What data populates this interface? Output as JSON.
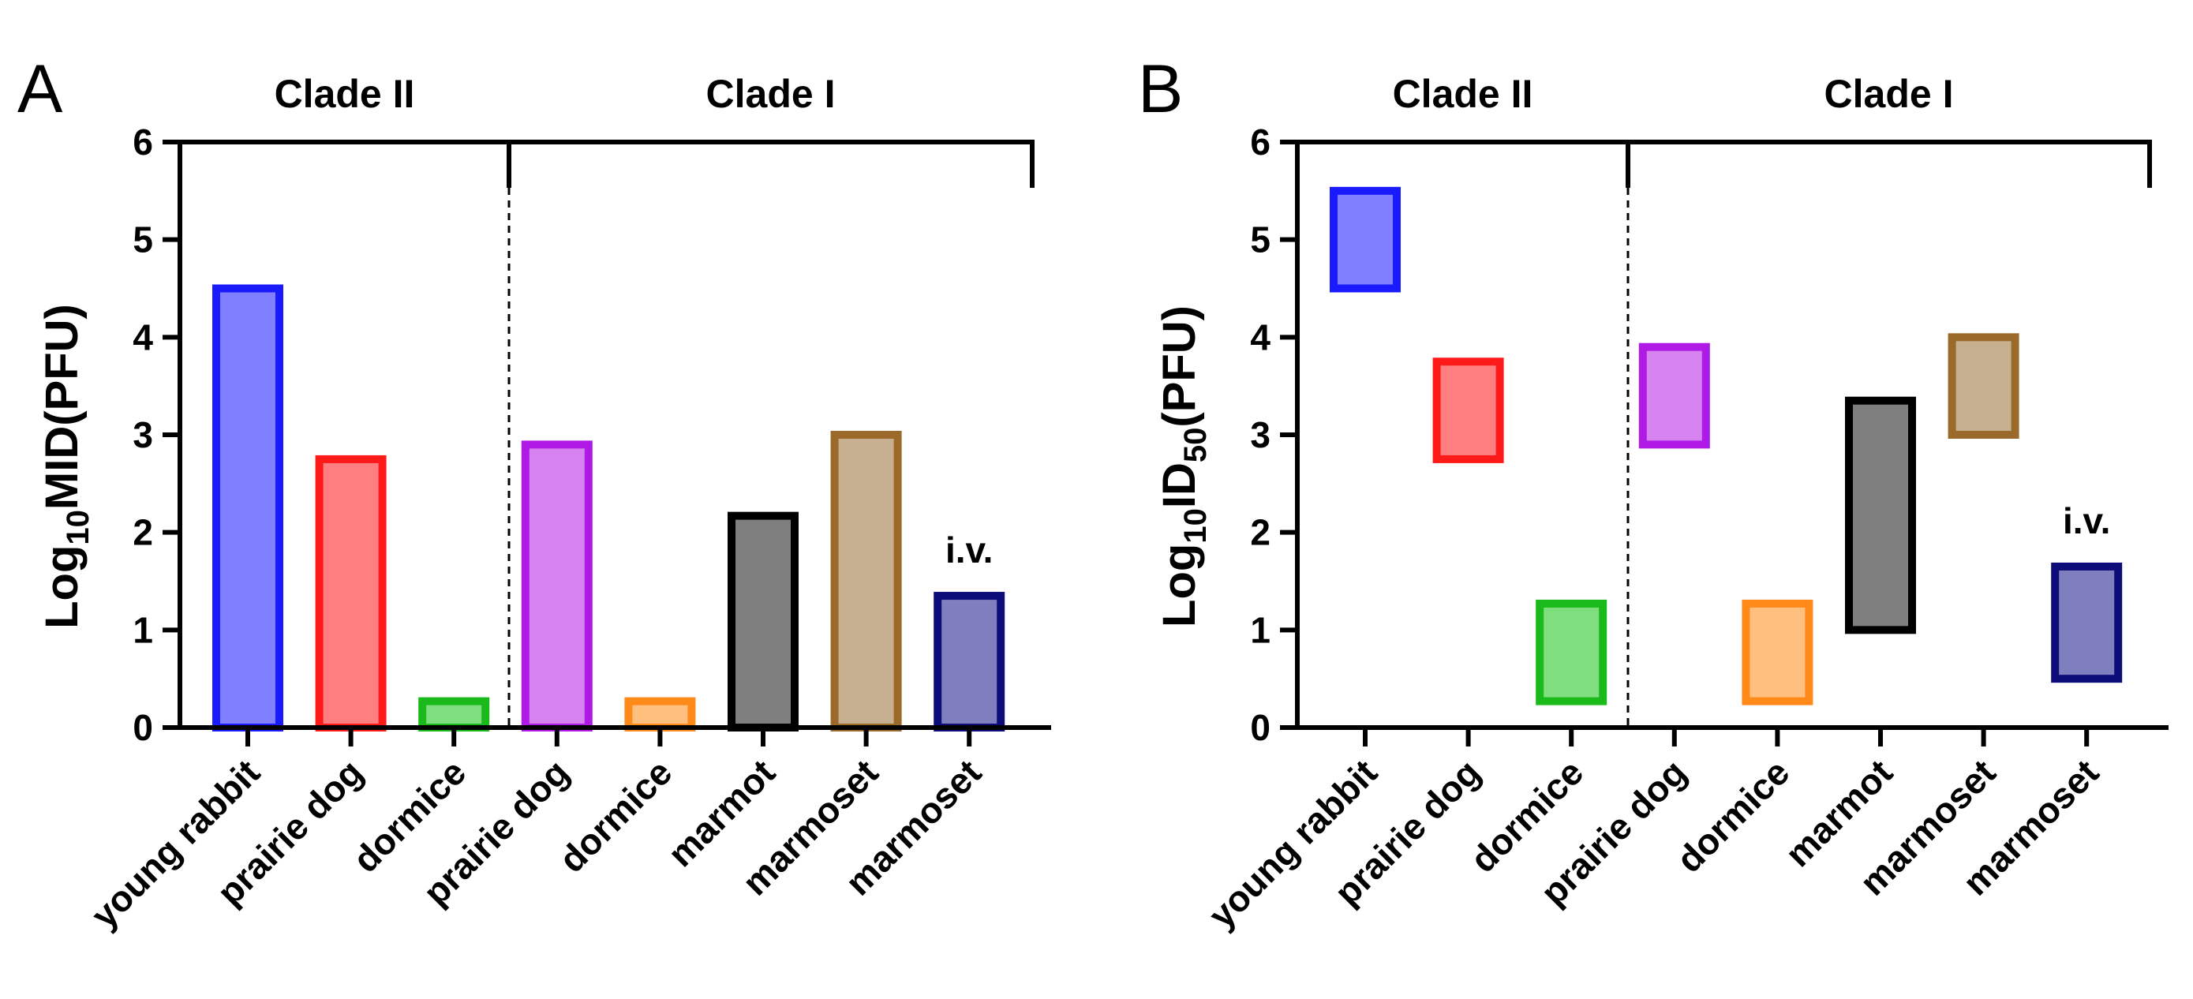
{
  "chart_data": [
    {
      "panel": "A",
      "type": "bar",
      "ylabel": {
        "base": "Log",
        "sub": "10",
        "rest": "MID(PFU)"
      },
      "ylim": [
        0,
        6
      ],
      "yticks": [
        "0",
        "1",
        "2",
        "3",
        "4",
        "5",
        "6"
      ],
      "groups": [
        {
          "label": "Clade II",
          "start": 0,
          "end": 2
        },
        {
          "label": "Clade I",
          "start": 3,
          "end": 7
        }
      ],
      "categories": [
        "young rabbit",
        "prairie dog",
        "dormice",
        "prairie dog",
        "dormice",
        "marmot",
        "marmoset",
        "marmoset"
      ],
      "values": [
        4.5,
        2.75,
        0.27,
        2.9,
        0.27,
        2.17,
        3.0,
        1.35
      ],
      "colors": [
        {
          "fill": "#7f7fff",
          "stroke": "#1a1aff"
        },
        {
          "fill": "#ff7f80",
          "stroke": "#ff1a1a"
        },
        {
          "fill": "#7fdf7f",
          "stroke": "#1aba1a"
        },
        {
          "fill": "#d783ef",
          "stroke": "#b01ae6"
        },
        {
          "fill": "#ffbf7f",
          "stroke": "#ff8a1a"
        },
        {
          "fill": "#7f7f7f",
          "stroke": "#000000"
        },
        {
          "fill": "#c7b08f",
          "stroke": "#9b6a2a"
        },
        {
          "fill": "#7f7fc0",
          "stroke": "#0d0d7a"
        }
      ],
      "annotations": [
        {
          "index": 7,
          "text": "i.v."
        }
      ]
    },
    {
      "panel": "B",
      "type": "floating-bar",
      "ylabel": {
        "base": "Log",
        "sub": "10",
        "mid": "ID",
        "sub2": "50",
        "rest": "(PFU)"
      },
      "ylim": [
        0,
        6
      ],
      "yticks": [
        "0",
        "1",
        "2",
        "3",
        "4",
        "5",
        "6"
      ],
      "groups": [
        {
          "label": "Clade II",
          "start": 0,
          "end": 2
        },
        {
          "label": "Clade I",
          "start": 3,
          "end": 7
        }
      ],
      "categories": [
        "young rabbit",
        "prairie dog",
        "dormice",
        "prairie dog",
        "dormice",
        "marmot",
        "marmoset",
        "marmoset"
      ],
      "ranges": [
        [
          4.5,
          5.5
        ],
        [
          2.75,
          3.75
        ],
        [
          0.27,
          1.27
        ],
        [
          2.9,
          3.9
        ],
        [
          0.27,
          1.27
        ],
        [
          1.0,
          3.35
        ],
        [
          3.0,
          4.0
        ],
        [
          0.5,
          1.65
        ]
      ],
      "colors": [
        {
          "fill": "#7f7fff",
          "stroke": "#1a1aff"
        },
        {
          "fill": "#ff7f80",
          "stroke": "#ff1a1a"
        },
        {
          "fill": "#7fdf7f",
          "stroke": "#1aba1a"
        },
        {
          "fill": "#d783ef",
          "stroke": "#b01ae6"
        },
        {
          "fill": "#ffbf7f",
          "stroke": "#ff8a1a"
        },
        {
          "fill": "#7f7f7f",
          "stroke": "#000000"
        },
        {
          "fill": "#c7b08f",
          "stroke": "#9b6a2a"
        },
        {
          "fill": "#7f7fc0",
          "stroke": "#0d0d7a"
        }
      ],
      "annotations": [
        {
          "index": 7,
          "text": "i.v."
        }
      ]
    }
  ]
}
